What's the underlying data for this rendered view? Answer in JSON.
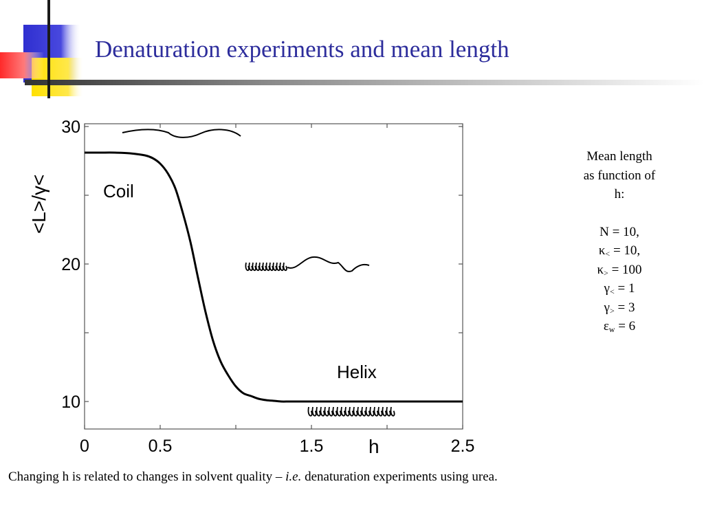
{
  "slide": {
    "title": "Denaturation experiments and mean length",
    "side_info": {
      "heading_lines": [
        "Mean length",
        "as function of",
        "h:"
      ],
      "params": [
        {
          "symbol": "N",
          "sub": "",
          "value": "= 10,"
        },
        {
          "symbol": "κ",
          "sub": "<",
          "value": "= 10,"
        },
        {
          "symbol": "κ",
          "sub": ">",
          "value": "= 100"
        },
        {
          "symbol": "γ",
          "sub": "<",
          "value": "= 1"
        },
        {
          "symbol": "γ",
          "sub": ">",
          "value": "= 3"
        },
        {
          "symbol": "ε",
          "sub": "w",
          "value": "= 6"
        }
      ]
    },
    "caption": {
      "before": "Changing h is related to changes in solvent quality – ",
      "italic": "i.e.",
      "after": " denaturation experiments using urea."
    }
  },
  "chart_data": {
    "type": "line",
    "xlabel": "h",
    "ylabel": "<L>/γ<",
    "xlim": [
      0,
      2.5
    ],
    "ylim": [
      8,
      30.2
    ],
    "xticks": [
      0,
      0.5,
      1,
      1.5,
      2,
      2.5
    ],
    "xtick_labels": [
      "0",
      "0.5",
      "",
      "1.5",
      "",
      "2.5"
    ],
    "yticks": [
      10,
      15,
      20,
      25,
      30
    ],
    "ytick_labels": [
      "10",
      "",
      "20",
      "",
      "30"
    ],
    "annotations": [
      "Coil",
      "Helix"
    ],
    "series": [
      {
        "x": [
          0,
          0.1,
          0.2,
          0.3,
          0.4,
          0.45,
          0.5,
          0.55,
          0.6,
          0.65,
          0.7,
          0.75,
          0.8,
          0.85,
          0.9,
          0.95,
          1.0,
          1.05,
          1.1,
          1.15,
          1.2,
          1.25,
          1.3,
          1.35,
          1.4,
          1.45,
          1.5,
          1.6,
          1.8,
          2.0,
          2.2,
          2.5
        ],
        "y": [
          28.1,
          28.1,
          28.1,
          28.05,
          27.9,
          27.7,
          27.3,
          26.6,
          25.5,
          23.7,
          21.6,
          19.0,
          16.5,
          14.4,
          12.9,
          11.9,
          11.1,
          10.6,
          10.4,
          10.2,
          10.1,
          10.05,
          10.0,
          10.0,
          10.0,
          10.0,
          10.0,
          10.0,
          10.0,
          10.0,
          10.0,
          10.0
        ]
      }
    ],
    "grid": false,
    "legend": "none"
  }
}
